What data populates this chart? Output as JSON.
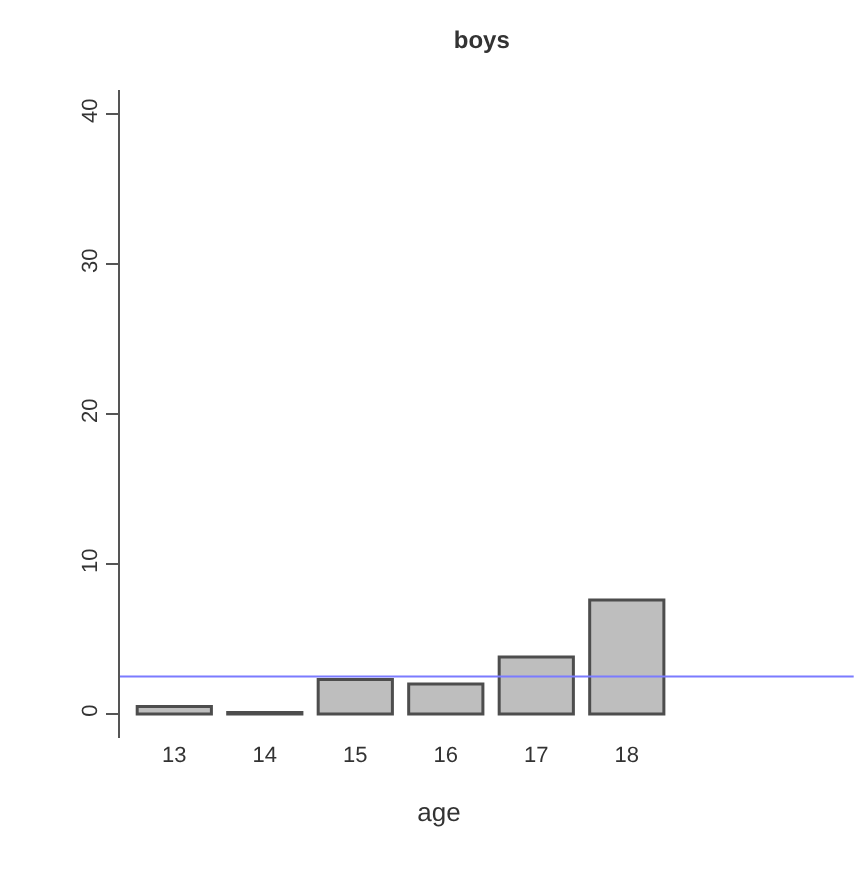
{
  "chart_data": {
    "type": "bar",
    "title": "boys",
    "xlabel": "age",
    "categories": [
      "13",
      "14",
      "15",
      "16",
      "17",
      "18"
    ],
    "values": [
      0.5,
      0.1,
      2.3,
      2.0,
      3.8,
      7.6
    ],
    "color": "#bebebe",
    "ylim": [
      -1.6,
      41.6
    ],
    "yticks": [
      0,
      10,
      20,
      30,
      40
    ],
    "ref_lines": [
      {
        "axis": "y",
        "value": 2.5,
        "color": "#7b7bff"
      }
    ]
  }
}
